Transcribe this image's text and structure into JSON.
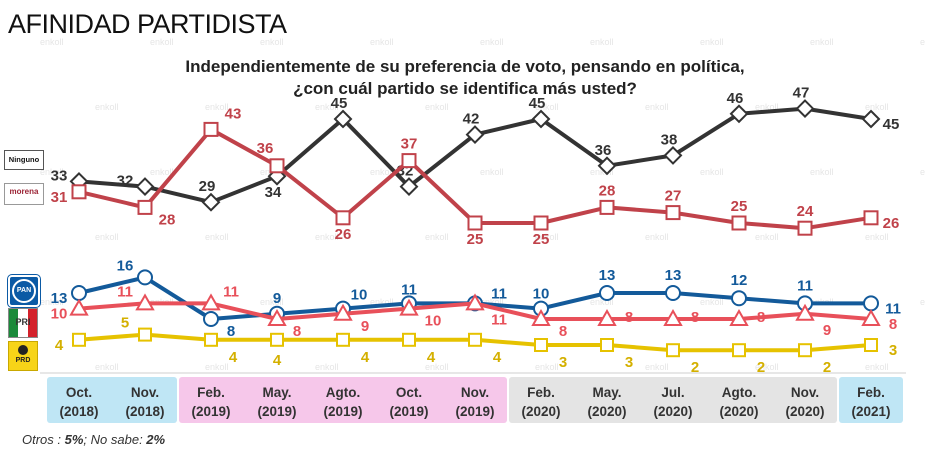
{
  "page": {
    "title": "AFINIDAD PARTIDISTA",
    "subtitle_line1": "Independientemente de su preferencia de voto, pensando en política,",
    "subtitle_line2": "¿con cuál partido se identifica más usted?",
    "footnote_prefix": "Otros : ",
    "footnote_otros": "5%",
    "footnote_mid": "; No sabe: ",
    "footnote_nosabe": "2%",
    "watermark": "enkoll"
  },
  "logos": {
    "ninguno": "Ninguno",
    "morena": "morena",
    "pan": "PAN",
    "pri": "PRI",
    "prd": "PRD"
  },
  "chart_data": {
    "type": "line",
    "title": "AFINIDAD PARTIDISTA",
    "xlabel": "",
    "ylabel": "",
    "ylim": [
      0,
      50
    ],
    "grid": false,
    "categories": [
      [
        "Oct.",
        "(2018)"
      ],
      [
        "Nov.",
        "(2018)"
      ],
      [
        "Feb.",
        "(2019)"
      ],
      [
        "May.",
        "(2019)"
      ],
      [
        "Agto.",
        "(2019)"
      ],
      [
        "Oct.",
        "(2019)"
      ],
      [
        "Nov.",
        "(2019)"
      ],
      [
        "Feb.",
        "(2020)"
      ],
      [
        "May.",
        "(2020)"
      ],
      [
        "Jul.",
        "(2020)"
      ],
      [
        "Agto.",
        "(2020)"
      ],
      [
        "Nov.",
        "(2020)"
      ],
      [
        "Feb.",
        "(2021)"
      ]
    ],
    "period_groups": [
      {
        "name": "2018",
        "from": 0,
        "to": 1,
        "color": "#bfe6f5"
      },
      {
        "name": "2019",
        "from": 2,
        "to": 6,
        "color": "#f6c7ea"
      },
      {
        "name": "2020",
        "from": 7,
        "to": 11,
        "color": "#e4e4e4"
      },
      {
        "name": "2021",
        "from": 12,
        "to": 12,
        "color": "#bfe6f5"
      }
    ],
    "series": [
      {
        "name": "Ninguno",
        "color": "#333333",
        "label_color": "#333333",
        "marker": "diamond",
        "values": [
          33,
          32,
          29,
          34,
          45,
          32,
          42,
          45,
          36,
          38,
          46,
          47,
          45
        ]
      },
      {
        "name": "Morena",
        "color": "#c0424a",
        "label_color": "#c0424a",
        "marker": "square",
        "values": [
          31,
          28,
          43,
          36,
          26,
          37,
          25,
          25,
          28,
          27,
          25,
          24,
          26
        ]
      },
      {
        "name": "PAN",
        "color": "#135a9a",
        "label_color": "#135a9a",
        "marker": "circle",
        "values": [
          13,
          16,
          8,
          9,
          10,
          11,
          11,
          10,
          13,
          13,
          12,
          11,
          11
        ]
      },
      {
        "name": "PRI",
        "color": "#e8505a",
        "label_color": "#e8505a",
        "marker": "triangle",
        "values": [
          10,
          11,
          11,
          8,
          9,
          10,
          11,
          8,
          8,
          8,
          8,
          9,
          8
        ]
      },
      {
        "name": "PRD",
        "color": "#e6c200",
        "label_color": "#d4b000",
        "marker": "square",
        "values": [
          4,
          5,
          4,
          4,
          4,
          4,
          4,
          3,
          3,
          2,
          2,
          2,
          3
        ]
      }
    ]
  }
}
